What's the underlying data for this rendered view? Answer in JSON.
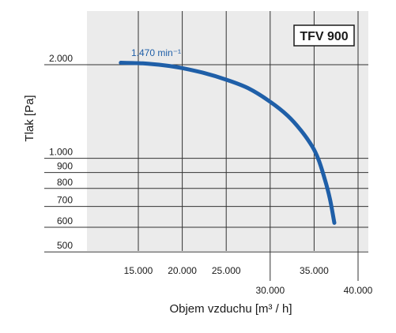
{
  "chart_data": {
    "type": "line",
    "title": "TFV 900",
    "xlabel": "Objem vzduchu [m³ / h]",
    "ylabel": "Tlak [Pa]",
    "x_scale": "linear",
    "y_scale": "log",
    "xlim": [
      10000,
      40000
    ],
    "ylim": [
      500,
      3000
    ],
    "grid": true,
    "x_ticks": [
      {
        "value": 15000,
        "label": "15.000"
      },
      {
        "value": 20000,
        "label": "20.000"
      },
      {
        "value": 25000,
        "label": "25.000"
      },
      {
        "value": 30000,
        "label": "30.000"
      },
      {
        "value": 35000,
        "label": "35.000"
      },
      {
        "value": 40000,
        "label": "40.000"
      }
    ],
    "y_ticks": [
      {
        "value": 2000,
        "label": "2.000"
      },
      {
        "value": 1000,
        "label": "1.000"
      },
      {
        "value": 900,
        "label": "900"
      },
      {
        "value": 800,
        "label": "800"
      },
      {
        "value": 700,
        "label": "700"
      },
      {
        "value": 600,
        "label": "600"
      },
      {
        "value": 500,
        "label": "500"
      }
    ],
    "series": [
      {
        "name": "1.470 min⁻¹",
        "color": "#1f5fa8",
        "x": [
          13000,
          15500,
          18000,
          20000,
          22500,
          25000,
          27500,
          30000,
          32000,
          33500,
          34800,
          35500,
          36200,
          36800,
          37300
        ],
        "y": [
          2030,
          2020,
          1990,
          1950,
          1880,
          1790,
          1680,
          1520,
          1370,
          1230,
          1090,
          990,
          860,
          740,
          620
        ]
      }
    ]
  }
}
